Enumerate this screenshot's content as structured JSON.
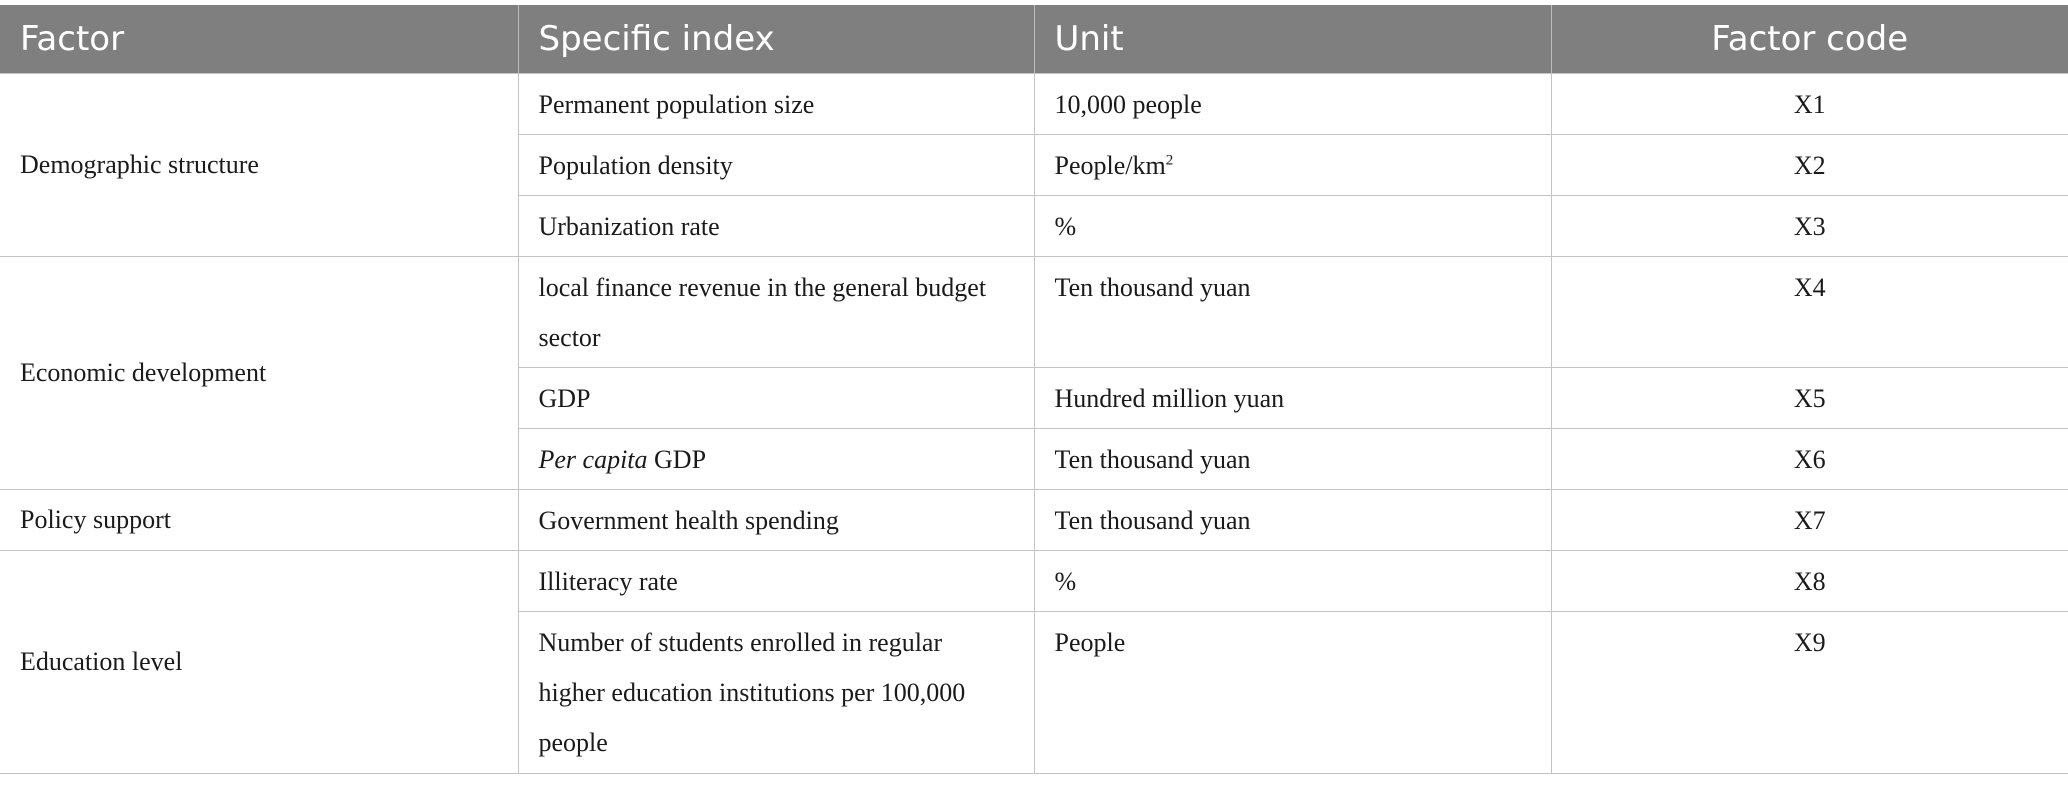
{
  "headers": {
    "factor": "Factor",
    "index": "Specific index",
    "unit": "Unit",
    "code": "Factor code"
  },
  "groups": [
    {
      "factor": "Demographic structure",
      "rows": [
        {
          "index": "Permanent population size",
          "unit": "10,000 people",
          "code": "X1"
        },
        {
          "index": "Population density",
          "unit": "People/km",
          "unit_sup": "2",
          "code": "X2"
        },
        {
          "index": "Urbanization rate",
          "unit": "%",
          "code": "X3"
        }
      ]
    },
    {
      "factor": "Economic development",
      "rows": [
        {
          "index": "local finance revenue in the general budget sector",
          "unit": "Ten thousand yuan",
          "code": "X4"
        },
        {
          "index": "GDP",
          "unit": "Hundred million yuan",
          "code": "X5"
        },
        {
          "index_italic": "Per capita",
          "index": " GDP",
          "unit": "Ten thousand yuan",
          "code": "X6"
        }
      ]
    },
    {
      "factor": "Policy support",
      "rows": [
        {
          "index": "Government health spending",
          "unit": "Ten thousand yuan",
          "code": "X7"
        }
      ]
    },
    {
      "factor": "Education level",
      "rows": [
        {
          "index": "Illiteracy rate",
          "unit": "%",
          "code": "X8"
        },
        {
          "index": "Number of students enrolled in regular higher education institutions per 100,000 people",
          "unit": "People",
          "code": "X9"
        }
      ]
    }
  ]
}
